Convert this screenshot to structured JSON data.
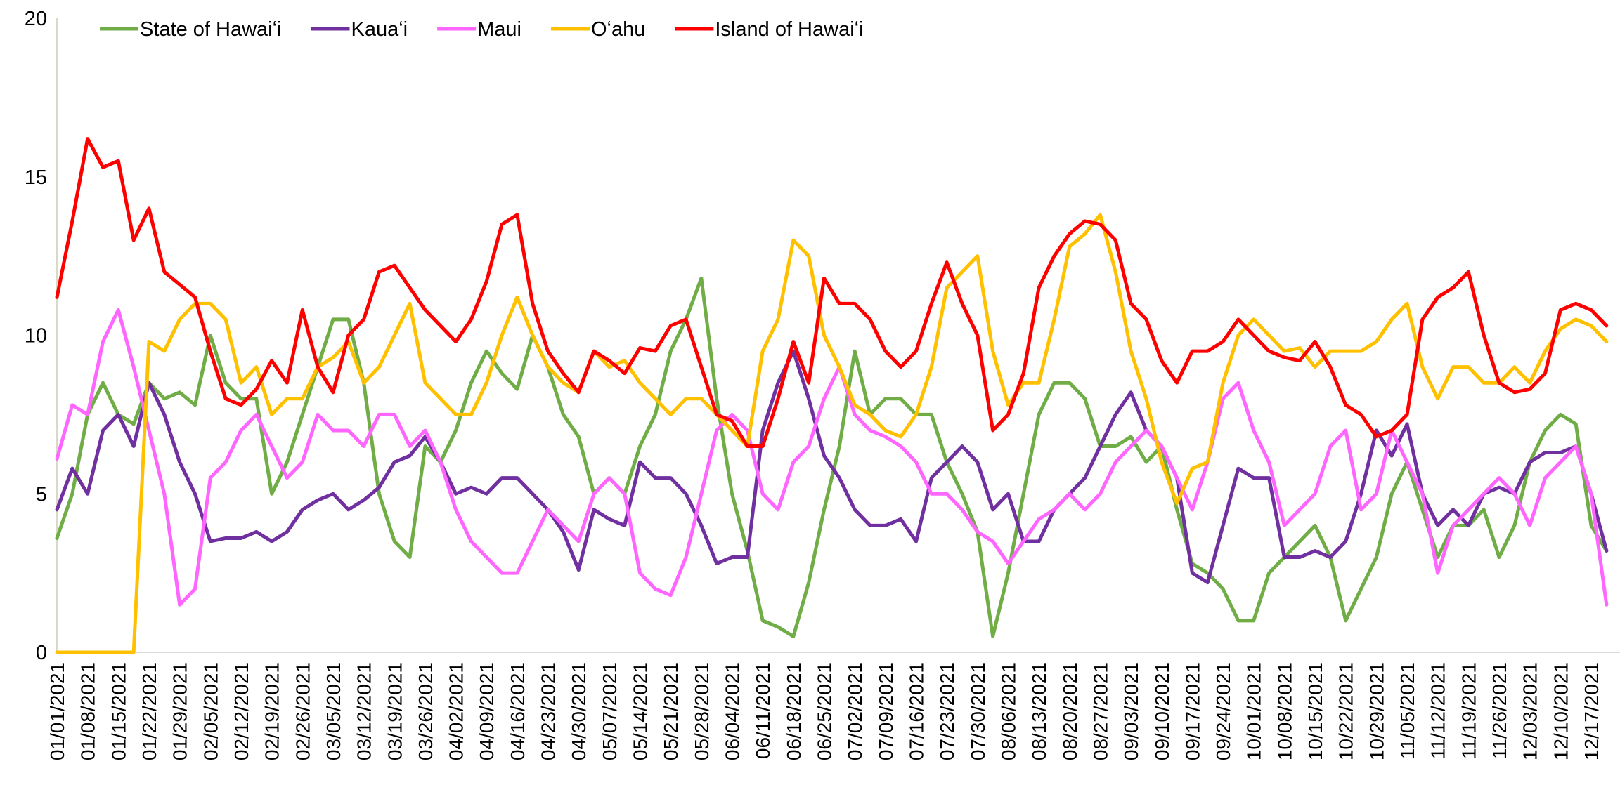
{
  "chart_data": {
    "type": "line",
    "categories": [
      "01/01/2021",
      null,
      "01/08/2021",
      null,
      "01/15/2021",
      null,
      "01/22/2021",
      null,
      "01/29/2021",
      null,
      "02/05/2021",
      null,
      "02/12/2021",
      null,
      "02/19/2021",
      null,
      "02/26/2021",
      null,
      "03/05/2021",
      null,
      "03/12/2021",
      null,
      "03/19/2021",
      null,
      "03/26/2021",
      null,
      "04/02/2021",
      null,
      "04/09/2021",
      null,
      "04/16/2021",
      null,
      "04/23/2021",
      null,
      "04/30/2021",
      null,
      "05/07/2021",
      null,
      "05/14/2021",
      null,
      "05/21/2021",
      null,
      "05/28/2021",
      null,
      "06/04/2021",
      null,
      "06/11/2021",
      null,
      "06/18/2021",
      null,
      "06/25/2021",
      null,
      "07/02/2021",
      null,
      "07/09/2021",
      null,
      "07/16/2021",
      null,
      "07/23/2021",
      null,
      "07/30/2021",
      null,
      "08/06/2021",
      null,
      "08/13/2021",
      null,
      "08/20/2021",
      null,
      "08/27/2021",
      null,
      "09/03/2021",
      null,
      "09/10/2021",
      null,
      "09/17/2021",
      null,
      "09/24/2021",
      null,
      "10/01/2021",
      null,
      "10/08/2021",
      null,
      "10/15/2021",
      null,
      "10/22/2021",
      null,
      "10/29/2021",
      null,
      "11/05/2021",
      null,
      "11/12/2021",
      null,
      "11/19/2021",
      null,
      "11/26/2021",
      null,
      "12/03/2021",
      null,
      "12/10/2021",
      null,
      "12/17/2021",
      null
    ],
    "series": [
      {
        "name": "State of Hawaiʻi",
        "color": "#70ad47",
        "values": [
          3.6,
          5.0,
          7.5,
          8.5,
          7.5,
          7.2,
          8.5,
          8.0,
          8.2,
          7.8,
          10.0,
          8.5,
          8.0,
          8.0,
          5.0,
          6.0,
          7.5,
          9.0,
          10.5,
          10.5,
          8.5,
          5.0,
          3.5,
          3.0,
          6.5,
          6.0,
          7.0,
          8.5,
          9.5,
          8.8,
          8.3,
          10.0,
          9.0,
          7.5,
          6.8,
          5.0,
          5.5,
          5.0,
          6.5,
          7.5,
          9.5,
          10.5,
          11.8,
          8.0,
          5.0,
          3.2,
          1.0,
          0.8,
          0.5,
          2.2,
          4.5,
          6.5,
          9.5,
          7.5,
          8.0,
          8.0,
          7.5,
          7.5,
          6.0,
          5.0,
          3.8,
          0.5,
          2.5,
          5.0,
          7.5,
          8.5,
          8.5,
          8.0,
          6.5,
          6.5,
          6.8,
          6.0,
          6.5,
          4.5,
          2.8,
          2.5,
          2.0,
          1.0,
          1.0,
          2.5,
          3.0,
          3.5,
          4.0,
          3.0,
          1.0,
          2.0,
          3.0,
          5.0,
          6.0,
          4.5,
          3.0,
          4.0,
          4.0,
          4.5,
          3.0,
          4.0,
          6.0,
          7.0,
          7.5,
          7.2,
          4.0,
          3.2
        ]
      },
      {
        "name": "Kauaʻi",
        "color": "#7030a0",
        "values": [
          4.5,
          5.8,
          5.0,
          7.0,
          7.5,
          6.5,
          8.5,
          7.5,
          6.0,
          5.0,
          3.5,
          3.6,
          3.6,
          3.8,
          3.5,
          3.8,
          4.5,
          4.8,
          5.0,
          4.5,
          4.8,
          5.2,
          6.0,
          6.2,
          6.8,
          6.0,
          5.0,
          5.2,
          5.0,
          5.5,
          5.5,
          5.0,
          4.5,
          3.8,
          2.6,
          4.5,
          4.2,
          4.0,
          6.0,
          5.5,
          5.5,
          5.0,
          4.0,
          2.8,
          3.0,
          3.0,
          7.0,
          8.5,
          9.5,
          8.0,
          6.2,
          5.5,
          4.5,
          4.0,
          4.0,
          4.2,
          3.5,
          5.5,
          6.0,
          6.5,
          6.0,
          4.5,
          5.0,
          3.5,
          3.5,
          4.5,
          5.0,
          5.5,
          6.5,
          7.5,
          8.2,
          7.0,
          6.5,
          5.5,
          2.5,
          2.2,
          4.0,
          5.8,
          5.5,
          5.5,
          3.0,
          3.0,
          3.2,
          3.0,
          3.5,
          5.0,
          7.0,
          6.2,
          7.2,
          5.0,
          4.0,
          4.5,
          4.0,
          5.0,
          5.2,
          5.0,
          6.0,
          6.3,
          6.3,
          6.5,
          5.0,
          3.2
        ]
      },
      {
        "name": "Maui",
        "color": "#ff66ff",
        "values": [
          6.1,
          7.8,
          7.5,
          9.8,
          10.8,
          9.0,
          7.0,
          5.0,
          1.5,
          2.0,
          5.5,
          6.0,
          7.0,
          7.5,
          6.5,
          5.5,
          6.0,
          7.5,
          7.0,
          7.0,
          6.5,
          7.5,
          7.5,
          6.5,
          7.0,
          6.0,
          4.5,
          3.5,
          3.0,
          2.5,
          2.5,
          3.5,
          4.5,
          4.0,
          3.5,
          5.0,
          5.5,
          5.0,
          2.5,
          2.0,
          1.8,
          3.0,
          5.0,
          7.0,
          7.5,
          7.0,
          5.0,
          4.5,
          6.0,
          6.5,
          8.0,
          9.0,
          7.5,
          7.0,
          6.8,
          6.5,
          6.0,
          5.0,
          5.0,
          4.5,
          3.8,
          3.5,
          2.8,
          3.5,
          4.2,
          4.5,
          5.0,
          4.5,
          5.0,
          6.0,
          6.5,
          7.0,
          6.5,
          5.5,
          4.5,
          6.0,
          8.0,
          8.5,
          7.0,
          6.0,
          4.0,
          4.5,
          5.0,
          6.5,
          7.0,
          4.5,
          5.0,
          7.0,
          6.0,
          5.0,
          2.5,
          4.0,
          4.5,
          5.0,
          5.5,
          5.0,
          4.0,
          5.5,
          6.0,
          6.5,
          5.0,
          1.5
        ]
      },
      {
        "name": "Oʻahu",
        "color": "#ffc000",
        "values": [
          0,
          0,
          0,
          0,
          0,
          0,
          9.8,
          9.5,
          10.5,
          11.0,
          11.0,
          10.5,
          8.5,
          9.0,
          7.5,
          8.0,
          8.0,
          9.0,
          9.3,
          9.8,
          8.5,
          9.0,
          10.0,
          11.0,
          8.5,
          8.0,
          7.5,
          7.5,
          8.5,
          10.0,
          11.2,
          10.0,
          9.0,
          8.5,
          8.2,
          9.5,
          9.0,
          9.2,
          8.5,
          8.0,
          7.5,
          8.0,
          8.0,
          7.5,
          7.0,
          6.5,
          9.5,
          10.5,
          13.0,
          12.5,
          10.0,
          9.0,
          7.8,
          7.5,
          7.0,
          6.8,
          7.5,
          9.0,
          11.5,
          12.0,
          12.5,
          9.5,
          7.8,
          8.5,
          8.5,
          10.5,
          12.8,
          13.2,
          13.8,
          12.0,
          9.5,
          8.0,
          6.0,
          4.7,
          5.8,
          6.0,
          8.5,
          10.0,
          10.5,
          10.0,
          9.5,
          9.6,
          9.0,
          9.5,
          9.5,
          9.5,
          9.8,
          10.5,
          11.0,
          9.0,
          8.0,
          9.0,
          9.0,
          8.5,
          8.5,
          9.0,
          8.5,
          9.5,
          10.2,
          10.5,
          10.3,
          9.8
        ]
      },
      {
        "name": "Island of Hawaiʻi",
        "color": "#ff0000",
        "values": [
          11.2,
          13.6,
          16.2,
          15.3,
          15.5,
          13.0,
          14.0,
          12.0,
          11.6,
          11.2,
          9.5,
          8.0,
          7.8,
          8.3,
          9.2,
          8.5,
          10.8,
          9.0,
          8.2,
          10.0,
          10.5,
          12.0,
          12.2,
          11.5,
          10.8,
          10.3,
          9.8,
          10.5,
          11.7,
          13.5,
          13.8,
          11.0,
          9.5,
          8.8,
          8.2,
          9.5,
          9.2,
          8.8,
          9.6,
          9.5,
          10.3,
          10.5,
          9.0,
          7.5,
          7.3,
          6.5,
          6.5,
          8.0,
          9.8,
          8.5,
          11.8,
          11.0,
          11.0,
          10.5,
          9.5,
          9.0,
          9.5,
          11.0,
          12.3,
          11.0,
          10.0,
          7.0,
          7.5,
          8.8,
          11.5,
          12.5,
          13.2,
          13.6,
          13.5,
          13.0,
          11.0,
          10.5,
          9.2,
          8.5,
          9.5,
          9.5,
          9.8,
          10.5,
          10.0,
          9.5,
          9.3,
          9.2,
          9.8,
          9.0,
          7.8,
          7.5,
          6.8,
          7.0,
          7.5,
          10.5,
          11.2,
          11.5,
          12.0,
          10.0,
          8.5,
          8.2,
          8.3,
          8.8,
          10.8,
          11.0,
          10.8,
          10.3
        ]
      }
    ],
    "ylim": [
      0,
      20
    ],
    "yticks": [
      0,
      5,
      10,
      15,
      20
    ],
    "grid": false,
    "legend": "top-left"
  }
}
